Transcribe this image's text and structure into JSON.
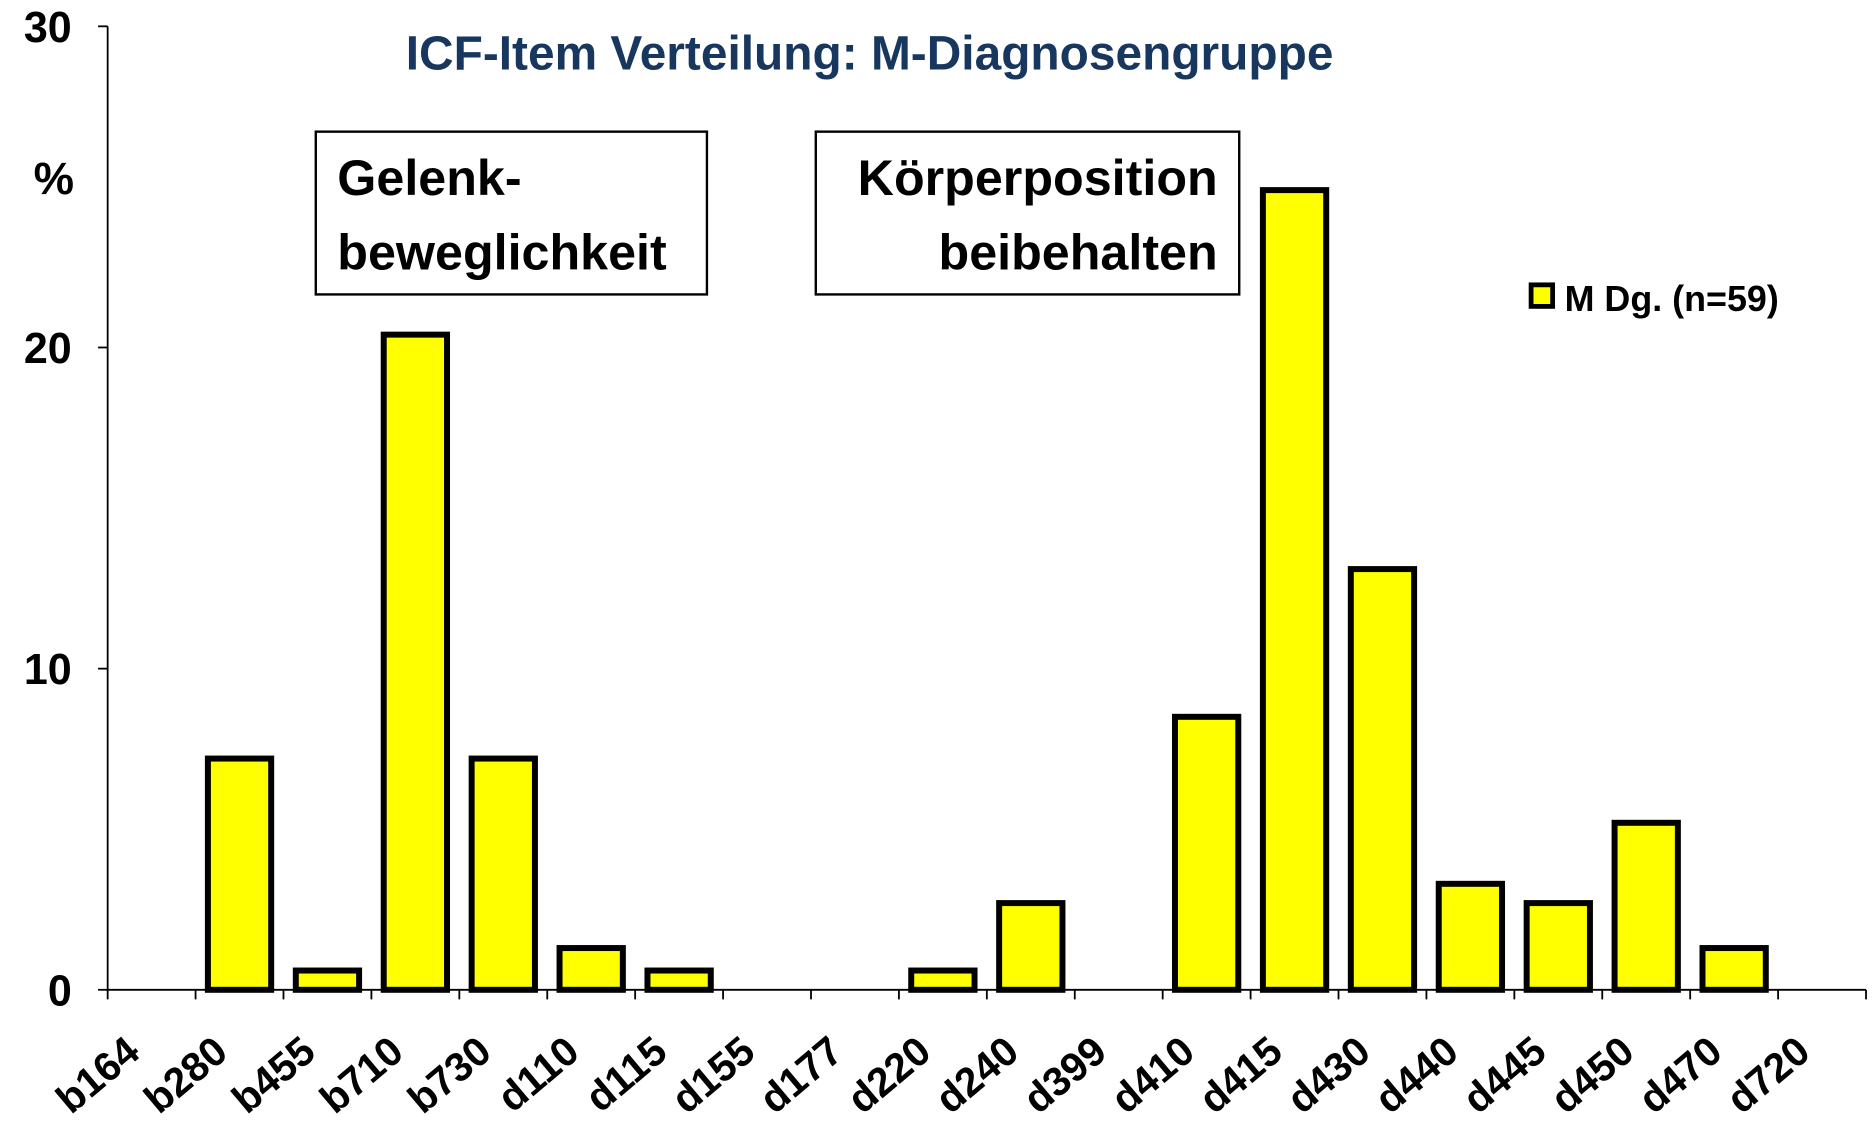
{
  "chart_data": {
    "type": "bar",
    "title": "ICF-Item Verteilung: M-Diagnosengruppe",
    "y_label": "%",
    "annotations": [
      [
        "Gelenk-",
        "beweglichkeit"
      ],
      [
        "Körperposition",
        "beibehalten"
      ]
    ],
    "categories": [
      "b164",
      "b280",
      "b455",
      "b710",
      "b730",
      "d110",
      "d115",
      "d155",
      "d177",
      "d220",
      "d240",
      "d399",
      "d410",
      "d415",
      "d430",
      "d440",
      "d445",
      "d450",
      "d470",
      "d720"
    ],
    "series": [
      {
        "name": "M Dg. (n=59)",
        "color": "#ffff00",
        "values": [
          0,
          7.2,
          0.6,
          20.4,
          7.2,
          1.3,
          0.6,
          0,
          0,
          0.6,
          2.7,
          0,
          8.5,
          24.9,
          13.1,
          3.3,
          2.7,
          5.2,
          1.3,
          0
        ]
      }
    ],
    "ylim": [
      0,
      30
    ],
    "yticks": [
      0,
      10,
      20,
      30
    ],
    "legend": "right"
  }
}
